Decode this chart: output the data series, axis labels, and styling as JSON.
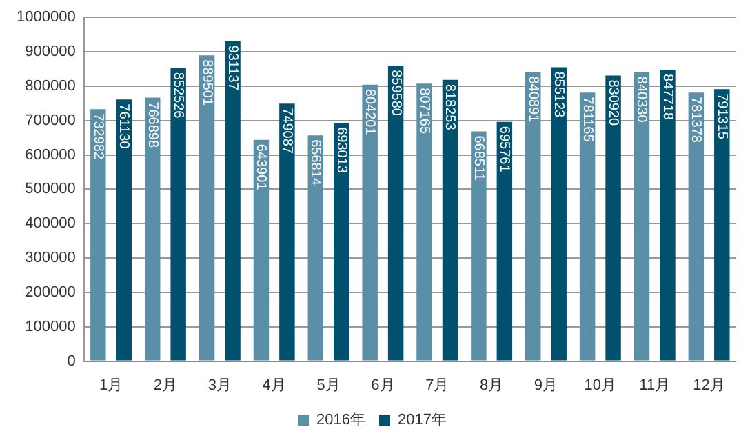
{
  "chart_data": {
    "type": "bar",
    "categories": [
      "1月",
      "2月",
      "3月",
      "4月",
      "5月",
      "6月",
      "7月",
      "8月",
      "9月",
      "10月",
      "11月",
      "12月"
    ],
    "series": [
      {
        "name": "2016年",
        "color": "#5b8fa8",
        "values": [
          732982,
          766898,
          889501,
          643901,
          656814,
          804201,
          807165,
          668511,
          840891,
          781165,
          840330,
          781378
        ]
      },
      {
        "name": "2017年",
        "color": "#00506e",
        "values": [
          761130,
          852526,
          931137,
          749087,
          693013,
          859580,
          818253,
          695761,
          855123,
          830920,
          847718,
          791315
        ]
      }
    ],
    "ylim": [
      0,
      1000000
    ],
    "yticks": [
      0,
      100000,
      200000,
      300000,
      400000,
      500000,
      600000,
      700000,
      800000,
      900000,
      1000000
    ],
    "grid": "y",
    "legend": "bottom",
    "data_labels": true
  }
}
